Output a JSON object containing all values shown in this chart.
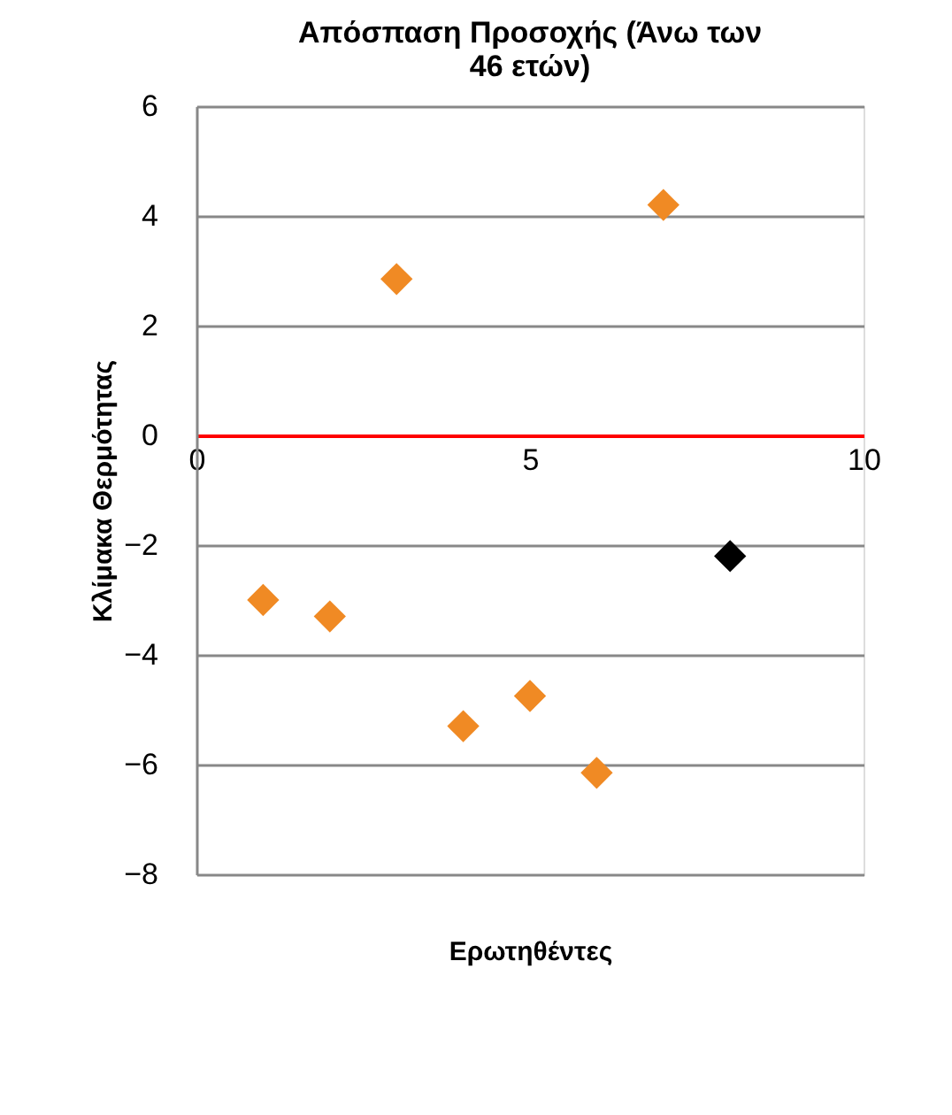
{
  "chart_data": {
    "type": "scatter",
    "title": "Απόσπαση Προσοχής (Άνω των 46 ετών)",
    "xlabel": "Ερωτηθέντες",
    "ylabel": "Κλίμακα Θερμότητας",
    "x": [
      1,
      2,
      3,
      4,
      5,
      6,
      7,
      8
    ],
    "values": [
      -3.0,
      -3.3,
      2.85,
      -5.3,
      -4.75,
      -6.15,
      4.2,
      -2.2
    ],
    "colors": [
      "#f08a24",
      "#f08a24",
      "#f08a24",
      "#f08a24",
      "#f08a24",
      "#f08a24",
      "#f08a24",
      "#000000"
    ],
    "xlim": [
      0,
      10
    ],
    "xticks": [
      0,
      5,
      10
    ],
    "ylim": [
      -8,
      6
    ],
    "yticks": [
      -8,
      -6,
      -4,
      -2,
      0,
      2,
      4,
      6
    ],
    "grid": "y",
    "marker": "diamond",
    "legend": false
  }
}
